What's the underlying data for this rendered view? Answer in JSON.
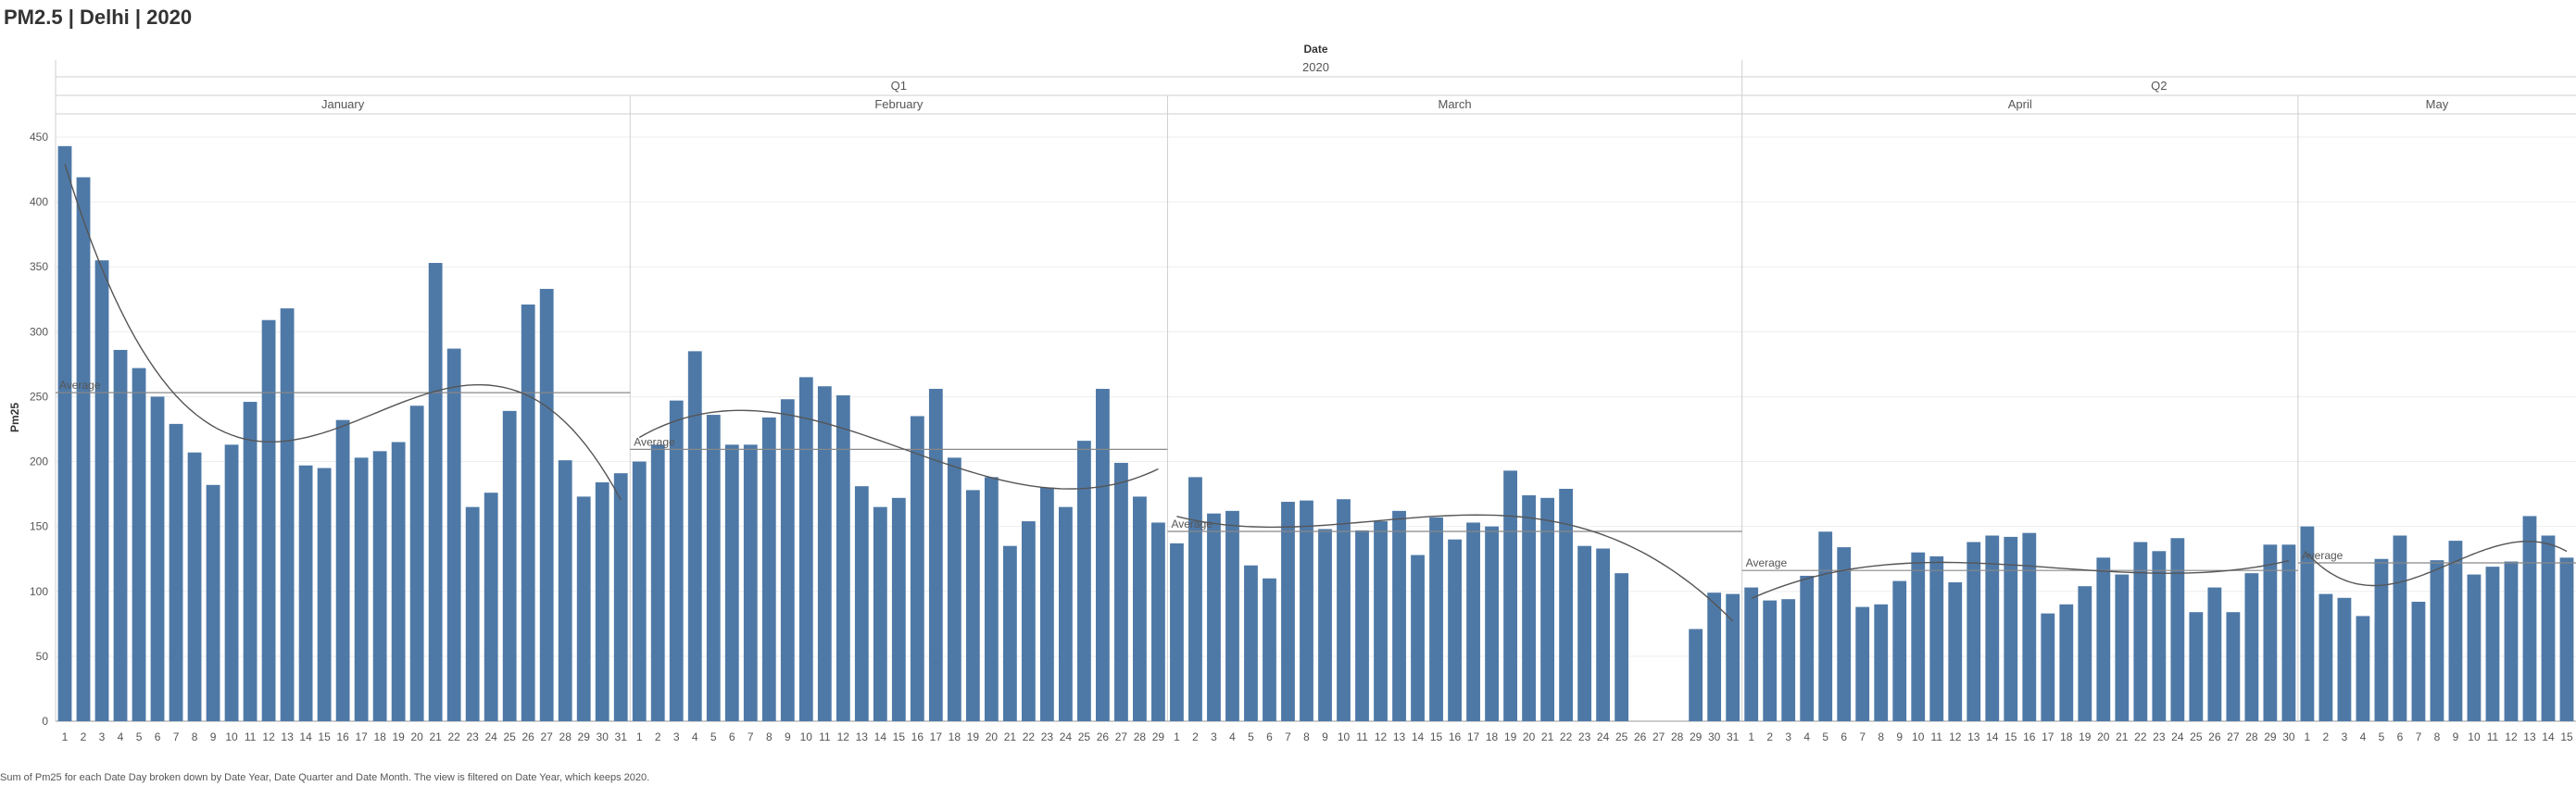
{
  "title": "PM2.5 | Delhi | 2020",
  "caption": "Sum of Pm25 for each Date Day broken down by Date Year, Date Quarter and Date Month.  The view is filtered on Date Year, which keeps 2020.",
  "colors": {
    "bar": "#4e79a7",
    "grid": "#eeeeee",
    "divider": "#cfcfcf",
    "trend": "#555555"
  },
  "chart_data": {
    "type": "bar",
    "ylabel": "Pm25",
    "ylim": [
      0,
      450
    ],
    "yticks": [
      0,
      50,
      100,
      150,
      200,
      250,
      300,
      350,
      400,
      450
    ],
    "header_title": "Date",
    "year": "2020",
    "quarters": [
      {
        "label": "Q1",
        "months": [
          "January",
          "February",
          "March"
        ]
      },
      {
        "label": "Q2",
        "months": [
          "April",
          "May"
        ]
      }
    ],
    "average_label": "Average",
    "reference_lines": [
      "average",
      "trend"
    ],
    "months": [
      {
        "name": "January",
        "days": [
          "1",
          "2",
          "3",
          "4",
          "5",
          "6",
          "7",
          "8",
          "9",
          "10",
          "11",
          "12",
          "13",
          "14",
          "15",
          "16",
          "17",
          "18",
          "19",
          "20",
          "21",
          "22",
          "23",
          "24",
          "25",
          "26",
          "27",
          "28",
          "29",
          "30",
          "31"
        ],
        "values": [
          443,
          419,
          355,
          286,
          272,
          250,
          229,
          207,
          182,
          213,
          246,
          309,
          318,
          197,
          195,
          232,
          203,
          208,
          215,
          243,
          353,
          287,
          165,
          176,
          239,
          321,
          333,
          201,
          173,
          184,
          191
        ]
      },
      {
        "name": "February",
        "days": [
          "1",
          "2",
          "3",
          "4",
          "5",
          "6",
          "7",
          "8",
          "9",
          "10",
          "11",
          "12",
          "13",
          "14",
          "15",
          "16",
          "17",
          "18",
          "19",
          "20",
          "21",
          "22",
          "23",
          "24",
          "25",
          "26",
          "27",
          "28",
          "29"
        ],
        "values": [
          200,
          213,
          247,
          285,
          236,
          213,
          213,
          234,
          248,
          265,
          258,
          251,
          181,
          165,
          172,
          235,
          256,
          203,
          178,
          188,
          135,
          154,
          180,
          165,
          216,
          256,
          199,
          173,
          153
        ]
      },
      {
        "name": "March",
        "days": [
          "1",
          "2",
          "3",
          "4",
          "5",
          "6",
          "7",
          "8",
          "9",
          "10",
          "11",
          "12",
          "13",
          "14",
          "15",
          "16",
          "17",
          "18",
          "19",
          "20",
          "21",
          "22",
          "23",
          "24",
          "25",
          "26",
          "27",
          "28",
          "29",
          "30",
          "31"
        ],
        "values": [
          137,
          188,
          160,
          162,
          120,
          110,
          169,
          170,
          148,
          171,
          147,
          154,
          162,
          128,
          157,
          140,
          153,
          150,
          193,
          174,
          172,
          179,
          135,
          133,
          114,
          null,
          null,
          null,
          71,
          99,
          98
        ]
      },
      {
        "name": "April",
        "days": [
          "1",
          "2",
          "3",
          "4",
          "5",
          "6",
          "7",
          "8",
          "9",
          "10",
          "11",
          "12",
          "13",
          "14",
          "15",
          "16",
          "17",
          "18",
          "19",
          "20",
          "21",
          "22",
          "23",
          "24",
          "25",
          "26",
          "27",
          "28",
          "29",
          "30"
        ],
        "values": [
          103,
          93,
          94,
          112,
          146,
          134,
          88,
          90,
          108,
          130,
          127,
          107,
          138,
          143,
          142,
          145,
          83,
          90,
          104,
          126,
          113,
          138,
          131,
          141,
          84,
          103,
          84,
          114,
          136,
          136
        ]
      },
      {
        "name": "May",
        "days": [
          "1",
          "2",
          "3",
          "4",
          "5",
          "6",
          "7",
          "8",
          "9",
          "10",
          "11",
          "12",
          "13",
          "14",
          "15"
        ],
        "values": [
          150,
          98,
          95,
          81,
          125,
          143,
          92,
          124,
          139,
          113,
          119,
          123,
          158,
          143,
          126
        ]
      }
    ]
  }
}
